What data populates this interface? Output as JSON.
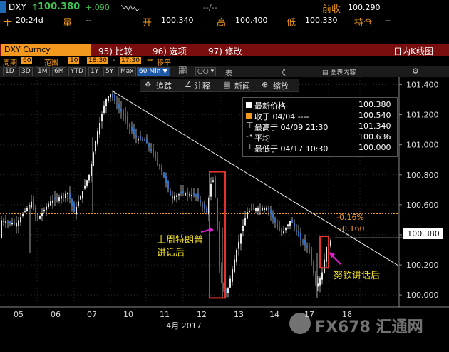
{
  "header": {
    "ticker": "DXY",
    "last": "100.380",
    "change": "+.090",
    "time_label": "于",
    "time": "20:24d",
    "volume_label": "量",
    "volume_value": "--",
    "bid_ask": "--/--",
    "prev_close_label": "前收",
    "prev_close": "100.290",
    "open_label": "开",
    "open": "100.340",
    "high_label": "高",
    "high": "100.400",
    "low_label": "低",
    "low": "100.330",
    "position_label": "持仓",
    "position": "--"
  },
  "toolbar": {
    "security": "DXY Curncy",
    "compare": "95) 比较",
    "options": "96) 选项",
    "edit": "97) 修改",
    "mode": "日内K线图"
  },
  "controls": {
    "period_label": "周期",
    "period": "60",
    "range_label": "范围",
    "range": "10",
    "start": "18:30",
    "end": "17:30",
    "shift": "移平",
    "periods": [
      "1D",
      "3D",
      "1M",
      "6M",
      "YTD",
      "1Y",
      "5Y",
      "Max"
    ],
    "interval": "60 Min",
    "table_label": "表",
    "chart_content": "图表内容"
  },
  "chart_tools": {
    "track": "追踪",
    "annotate": "注释",
    "news": "新闻",
    "zoom": "缩放"
  },
  "legend": {
    "items": [
      {
        "label": "最新价格",
        "value": "100.380"
      },
      {
        "label": "收于 04/04 ----",
        "value": "100.540"
      },
      {
        "label": "最高于 04/09 21:30",
        "value": "101.340"
      },
      {
        "label": "平均",
        "value": "100.636"
      },
      {
        "label": "最低于 04/17 10:30",
        "value": "100.000"
      }
    ]
  },
  "annotations": {
    "trump": "上周特朗普\n讲话后",
    "mnuchin": "努钦讲话后",
    "pct": "-0.16%",
    "pts": "-0.160",
    "last_tag": "100.380"
  },
  "watermark": "FX678 汇通网",
  "chart_data": {
    "type": "candlestick",
    "title": "",
    "xlabel": "4月 2017",
    "ylabel": "",
    "x_ticks": [
      "05",
      "06",
      "07",
      "10",
      "11",
      "12",
      "13",
      "14",
      "17",
      "18"
    ],
    "y_ticks": [
      "101.400",
      "101.200",
      "101.000",
      "100.800",
      "100.600",
      "100.400",
      "100.200",
      "100.000"
    ],
    "ylim": [
      99.92,
      101.45
    ],
    "reference_line": 100.54,
    "last_price": 100.38,
    "trendline": [
      {
        "date": "04/09",
        "value": 101.36
      },
      {
        "date": "04/18",
        "value": 100.16
      }
    ],
    "series": [
      {
        "date": "04/05",
        "close": 100.5
      },
      {
        "date": "04/06",
        "close": 100.68
      },
      {
        "date": "04/07",
        "close": 101.05
      },
      {
        "date": "04/09",
        "close": 101.34
      },
      {
        "date": "04/10",
        "close": 101.05
      },
      {
        "date": "04/11",
        "close": 100.66
      },
      {
        "date": "04/12",
        "close": 100.8
      },
      {
        "date": "04/13",
        "close": 100.0
      },
      {
        "date": "04/14",
        "close": 100.56
      },
      {
        "date": "04/17",
        "close": 100.0
      },
      {
        "date": "04/18",
        "close": 100.38
      }
    ]
  }
}
